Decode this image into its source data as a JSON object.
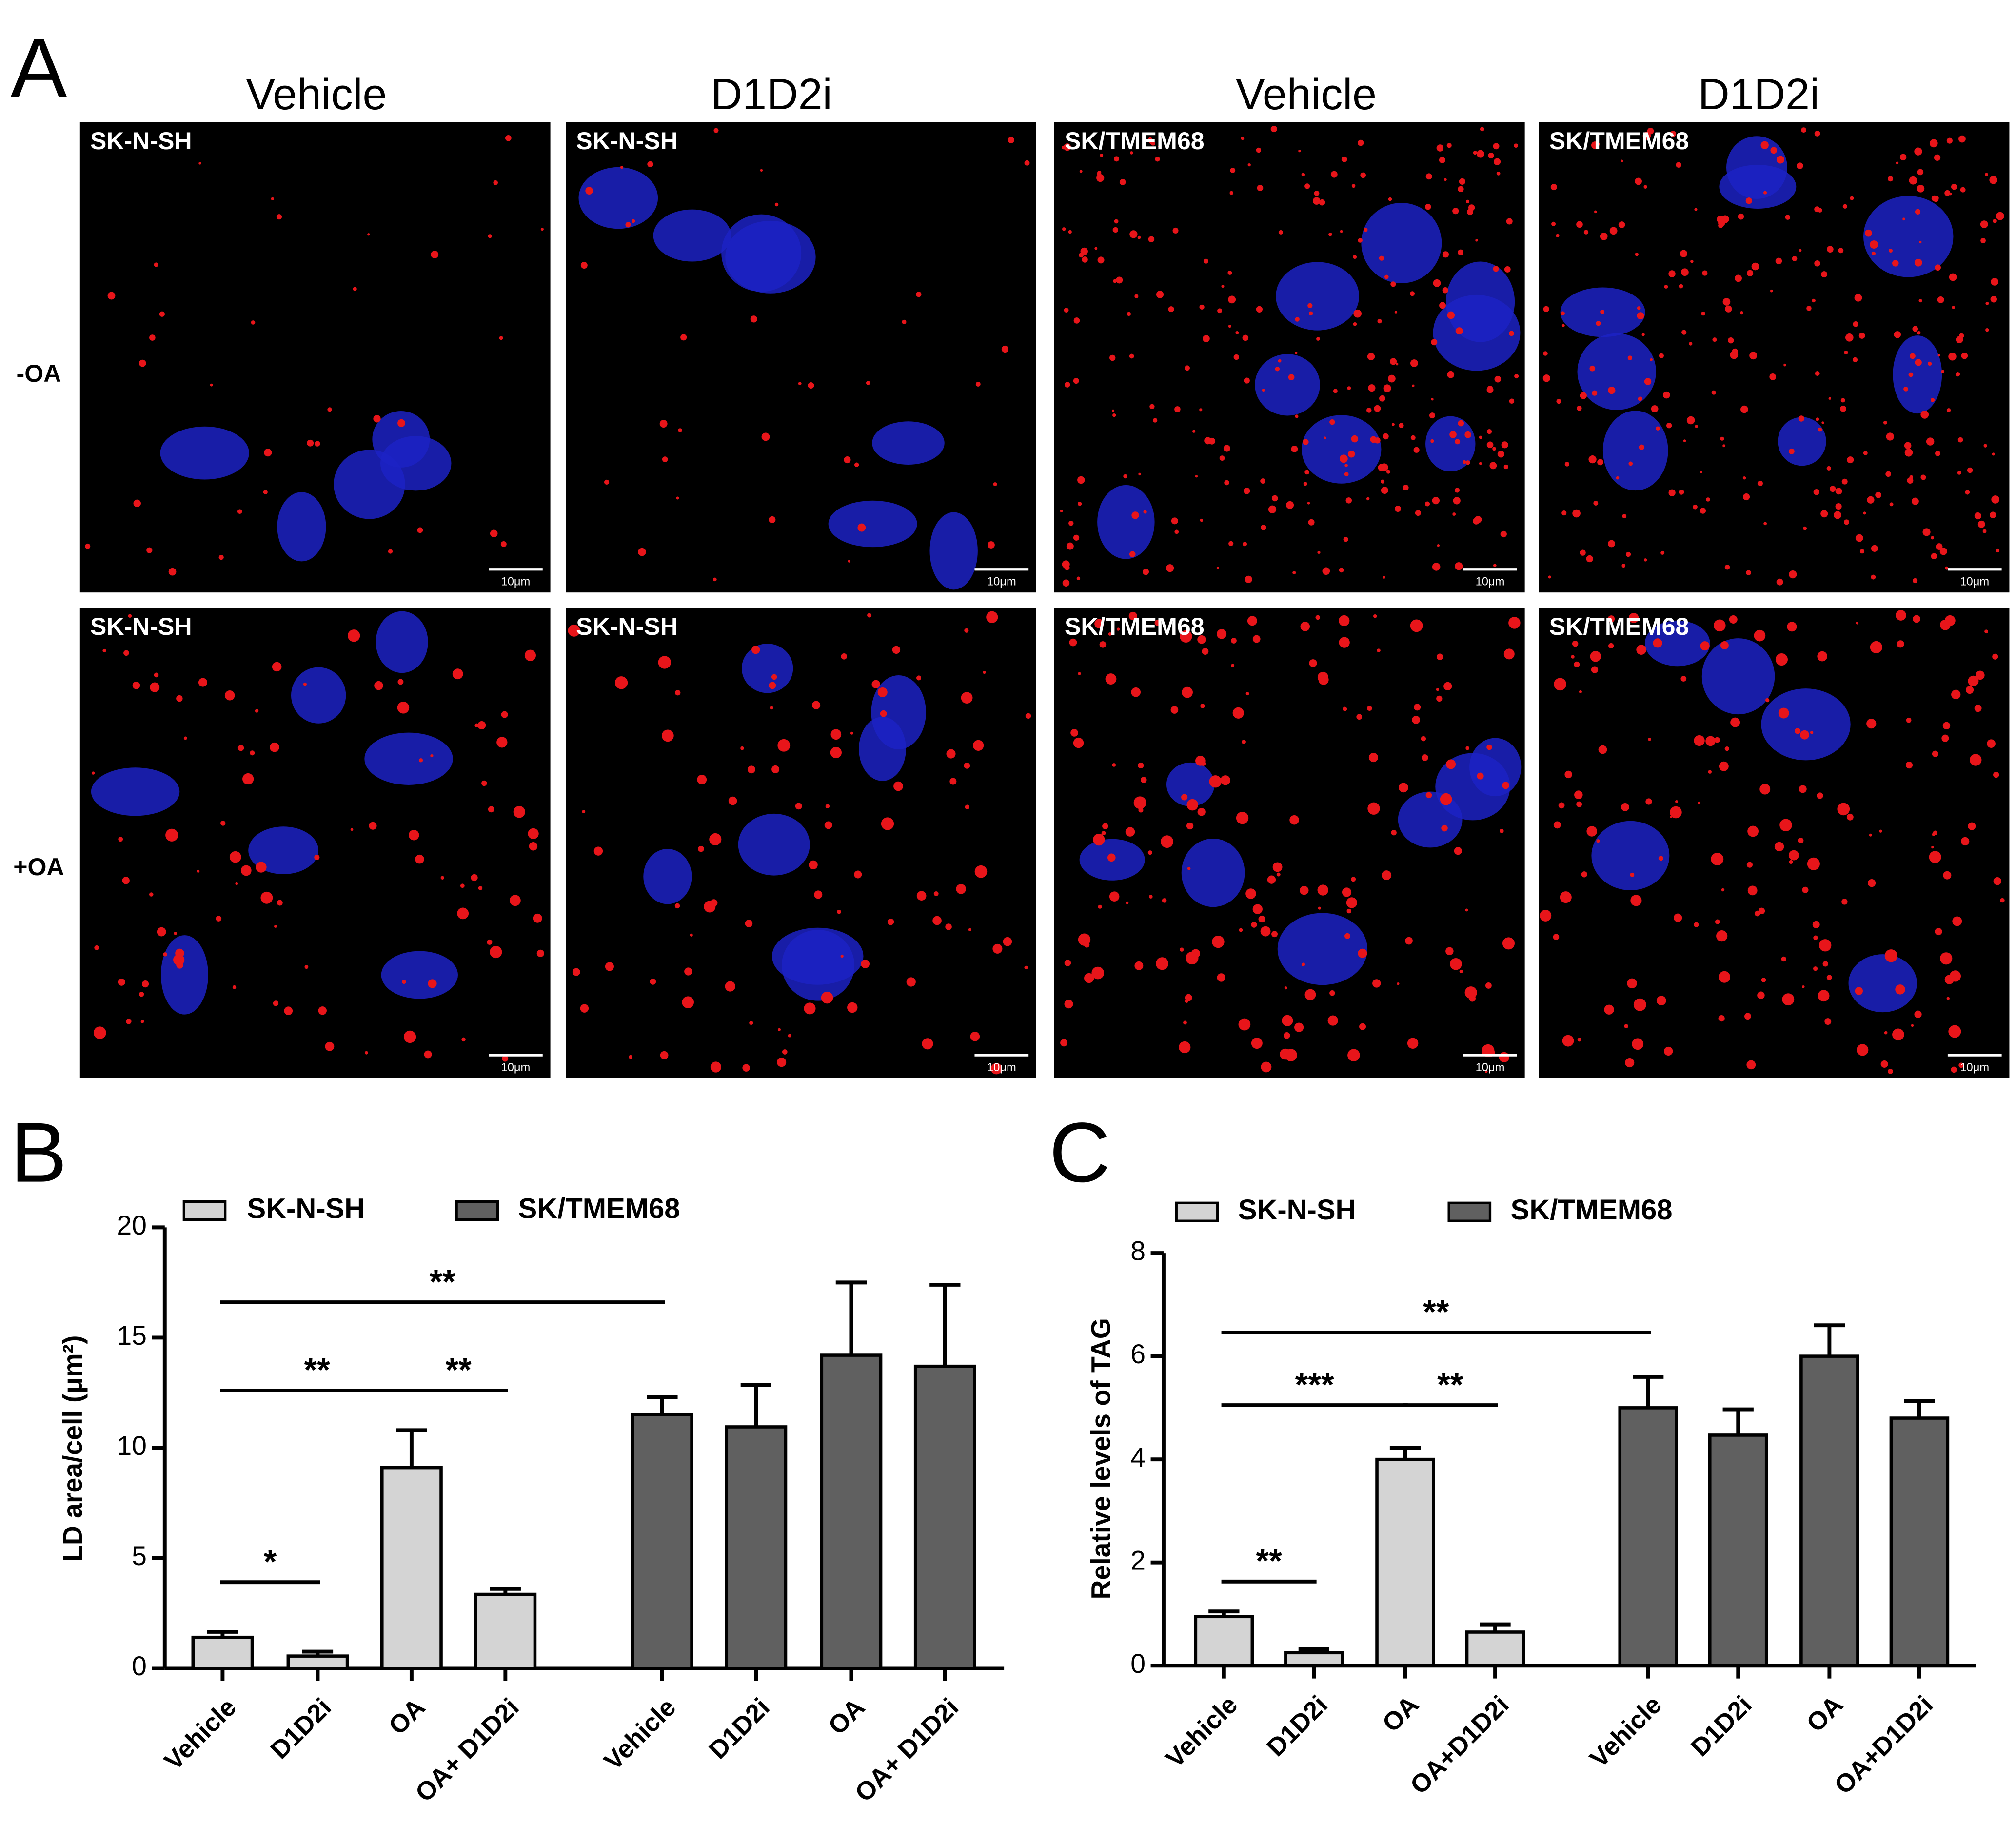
{
  "panel_a": {
    "label": "A",
    "columns": [
      "Vehicle",
      "D1D2i",
      "Vehicle",
      "D1D2i"
    ],
    "rows": [
      "-OA",
      "+OA"
    ],
    "images": [
      [
        "SK-N-SH",
        "SK-N-SH",
        "SK/TMEM68",
        "SK/TMEM68"
      ],
      [
        "SK-N-SH",
        "SK-N-SH",
        "SK/TMEM68",
        "SK/TMEM68"
      ]
    ],
    "scale_bar": "10μm"
  },
  "chart_data": [
    {
      "type": "bar",
      "panel_label": "B",
      "y_label": "LD area/cell (μm²)",
      "categories": [
        "Vehicle",
        "D1D2i",
        "OA",
        "OA+ D1D2i",
        "Vehicle",
        "D1D2i",
        "OA",
        "OA+ D1D2i"
      ],
      "series": [
        {
          "name": "SK-N-SH",
          "color": "#d4d4d4",
          "values": [
            1.4,
            0.55,
            9.1,
            3.35,
            null,
            null,
            null,
            null
          ],
          "errors": [
            0.25,
            0.2,
            1.7,
            0.25,
            null,
            null,
            null,
            null
          ]
        },
        {
          "name": "SK/TMEM68",
          "color": "#606060",
          "values": [
            null,
            null,
            null,
            null,
            11.5,
            10.95,
            14.2,
            13.7
          ],
          "errors": [
            null,
            null,
            null,
            null,
            0.8,
            1.9,
            3.3,
            3.7
          ]
        }
      ],
      "ylim": [
        0,
        20
      ],
      "yticks": [
        0,
        5,
        10,
        15,
        20
      ],
      "annotations": [
        "**",
        "**",
        "**",
        "*"
      ]
    },
    {
      "type": "bar",
      "panel_label": "C",
      "y_label": "Relative levels of TAG",
      "categories": [
        "Vehicle",
        "D1D2i",
        "OA",
        "OA+D1D2i",
        "Vehicle",
        "D1D2i",
        "OA",
        "OA+D1D2i"
      ],
      "series": [
        {
          "name": "SK-N-SH",
          "color": "#d4d4d4",
          "values": [
            0.95,
            0.25,
            4.0,
            0.65,
            null,
            null,
            null,
            null
          ],
          "errors": [
            0.1,
            0.07,
            0.22,
            0.15,
            null,
            null,
            null,
            null
          ]
        },
        {
          "name": "SK/TMEM68",
          "color": "#606060",
          "values": [
            null,
            null,
            null,
            null,
            5.0,
            4.47,
            6.0,
            4.8
          ],
          "errors": [
            null,
            null,
            null,
            null,
            0.6,
            0.5,
            0.6,
            0.33
          ]
        }
      ],
      "ylim": [
        0,
        8
      ],
      "yticks": [
        0,
        2,
        4,
        6,
        8
      ],
      "annotations": [
        "**",
        "***",
        "**",
        "**"
      ]
    }
  ]
}
